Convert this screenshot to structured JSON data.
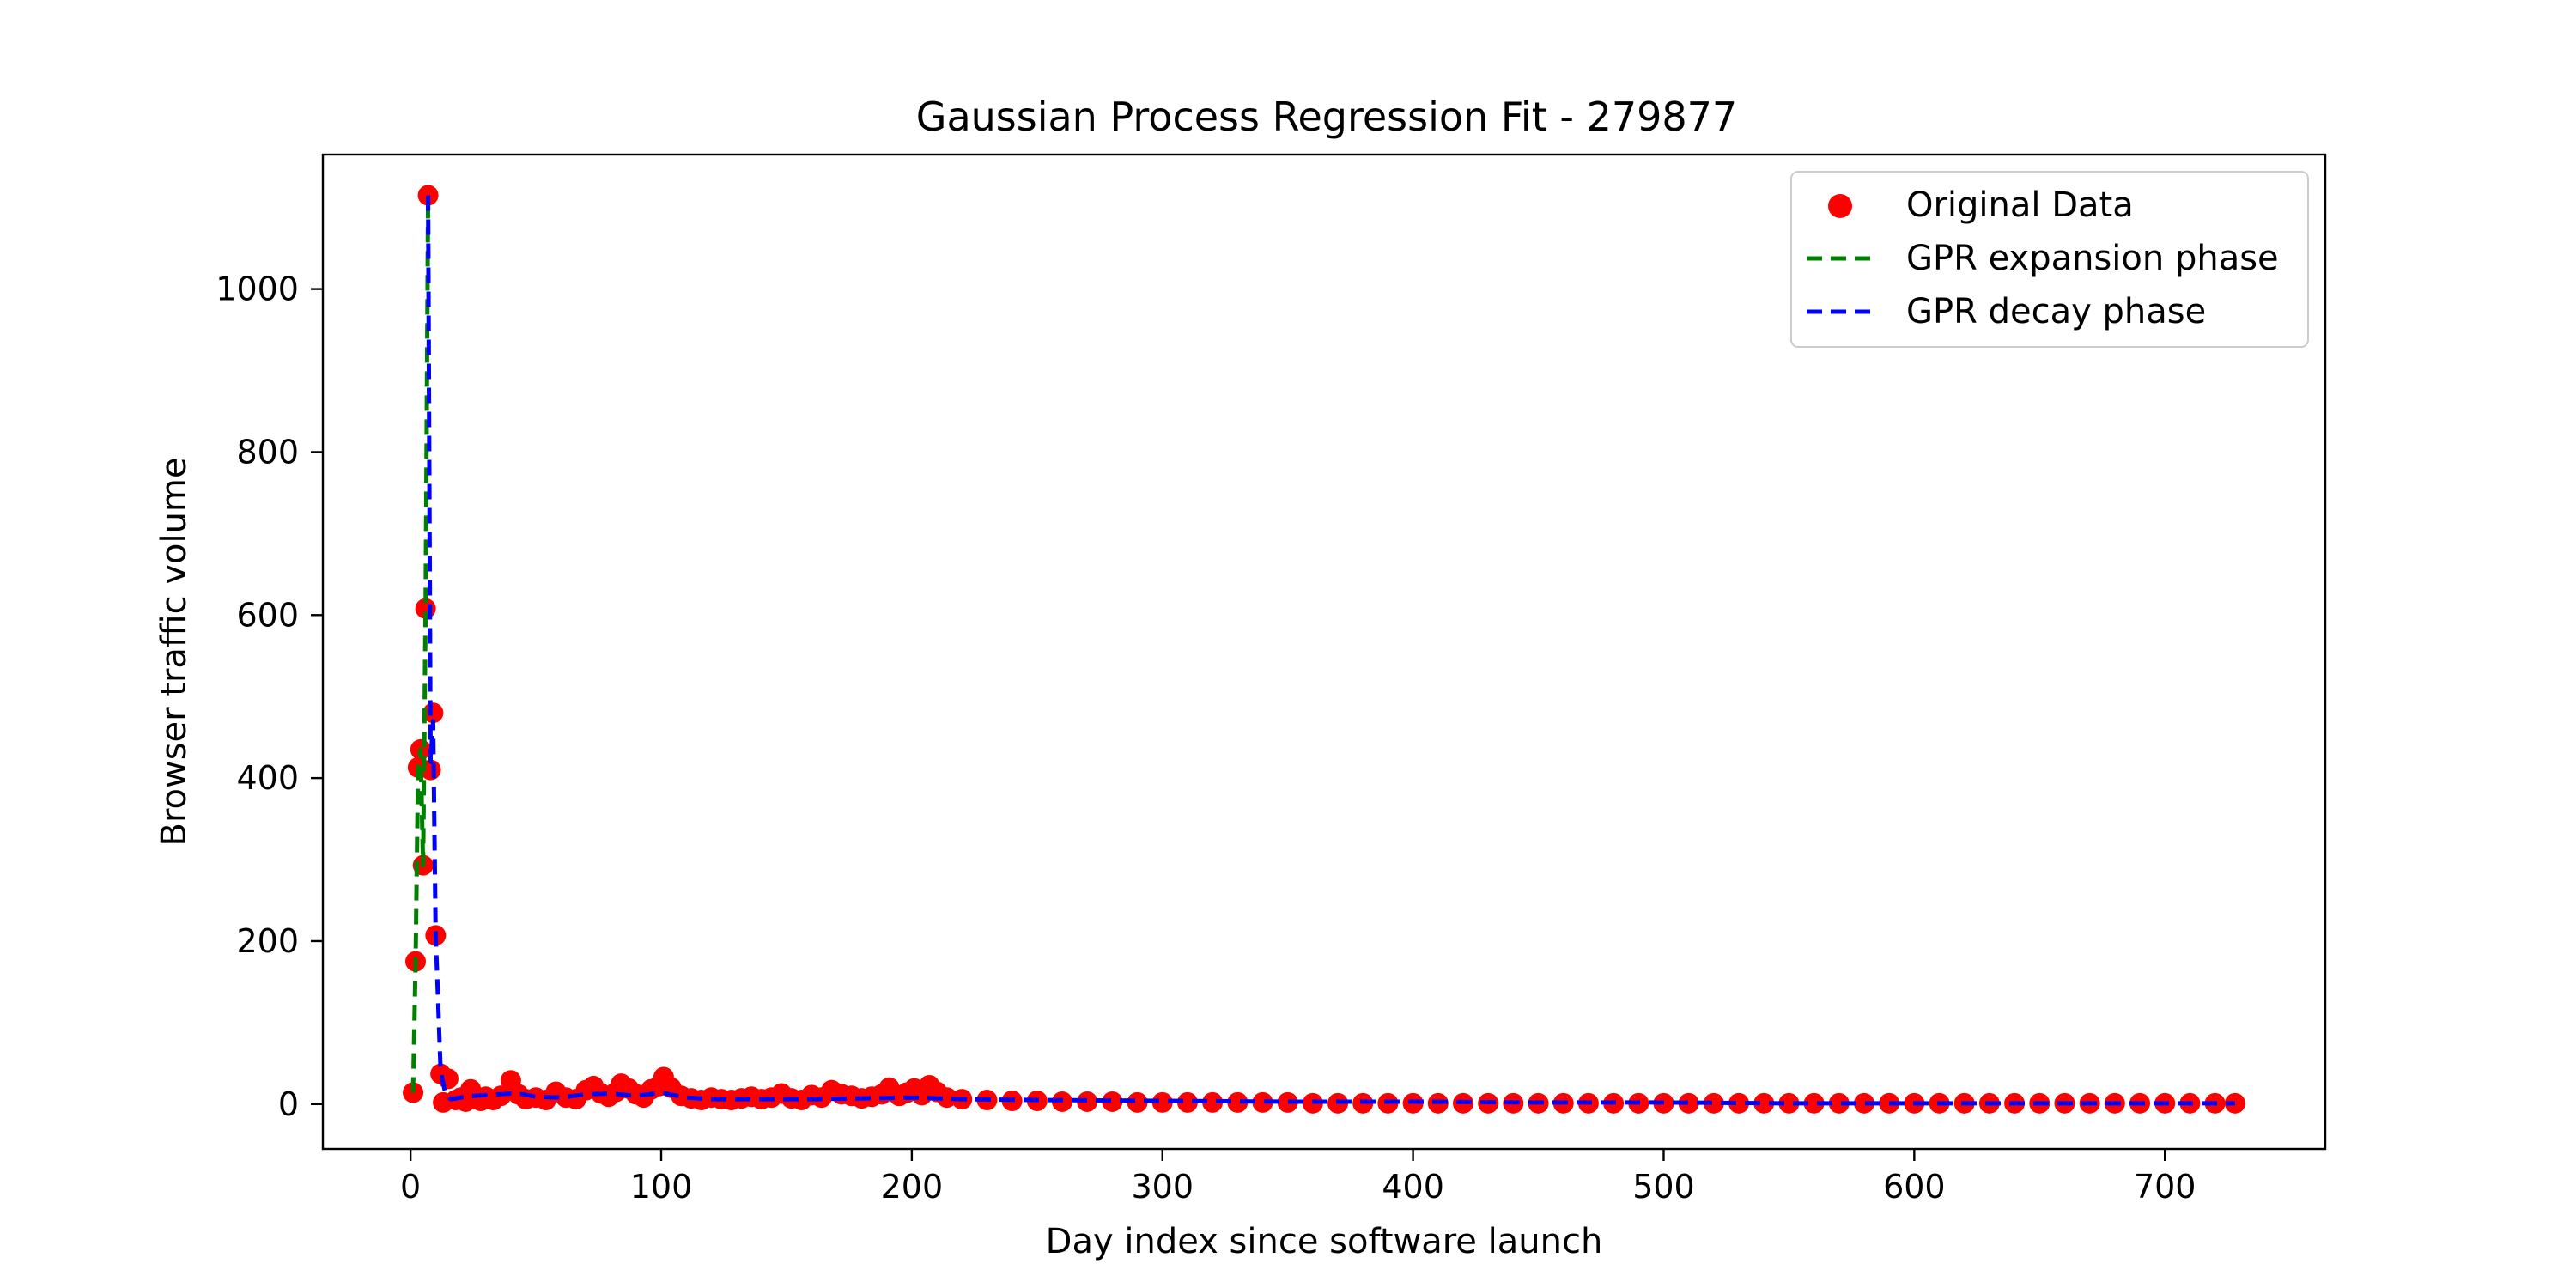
{
  "chart_data": {
    "type": "scatter",
    "title": "Gaussian Process Regression Fit - 279877",
    "xlabel": "Day index since software launch",
    "ylabel": "Browser traffic volume",
    "xlim": [
      -35,
      764
    ],
    "ylim": [
      -55,
      1165
    ],
    "xticks": [
      0,
      100,
      200,
      300,
      400,
      500,
      600,
      700
    ],
    "yticks": [
      0,
      200,
      400,
      600,
      800,
      1000
    ],
    "grid": false,
    "legend_position": "top-right",
    "colors": {
      "original_data": "#ff0000",
      "expansion_phase": "#008000",
      "decay_phase": "#0000ff"
    },
    "series": [
      {
        "name": "Original Data",
        "kind": "scatter",
        "color": "#ff0000",
        "points": [
          [
            1,
            14
          ],
          [
            2,
            175
          ],
          [
            3,
            413
          ],
          [
            4,
            435
          ],
          [
            5,
            293
          ],
          [
            6,
            608
          ],
          [
            7,
            1115
          ],
          [
            8,
            410
          ],
          [
            9,
            480
          ],
          [
            10,
            207
          ],
          [
            12,
            37
          ],
          [
            13,
            2
          ],
          [
            15,
            31
          ],
          [
            18,
            5
          ],
          [
            20,
            8
          ],
          [
            22,
            3
          ],
          [
            24,
            18
          ],
          [
            26,
            7
          ],
          [
            28,
            4
          ],
          [
            30,
            9
          ],
          [
            33,
            5
          ],
          [
            36,
            10
          ],
          [
            40,
            29
          ],
          [
            43,
            12
          ],
          [
            46,
            6
          ],
          [
            50,
            8
          ],
          [
            54,
            5
          ],
          [
            58,
            15
          ],
          [
            62,
            8
          ],
          [
            66,
            6
          ],
          [
            70,
            17
          ],
          [
            73,
            22
          ],
          [
            76,
            13
          ],
          [
            79,
            9
          ],
          [
            82,
            15
          ],
          [
            84,
            25
          ],
          [
            87,
            19
          ],
          [
            90,
            12
          ],
          [
            93,
            8
          ],
          [
            96,
            18
          ],
          [
            99,
            22
          ],
          [
            101,
            33
          ],
          [
            104,
            20
          ],
          [
            108,
            10
          ],
          [
            112,
            7
          ],
          [
            116,
            5
          ],
          [
            120,
            8
          ],
          [
            124,
            6
          ],
          [
            128,
            5
          ],
          [
            132,
            7
          ],
          [
            136,
            9
          ],
          [
            140,
            6
          ],
          [
            144,
            8
          ],
          [
            148,
            13
          ],
          [
            152,
            7
          ],
          [
            156,
            5
          ],
          [
            160,
            11
          ],
          [
            164,
            8
          ],
          [
            168,
            17
          ],
          [
            172,
            12
          ],
          [
            176,
            10
          ],
          [
            180,
            7
          ],
          [
            184,
            9
          ],
          [
            188,
            12
          ],
          [
            191,
            20
          ],
          [
            195,
            10
          ],
          [
            198,
            14
          ],
          [
            201,
            19
          ],
          [
            204,
            11
          ],
          [
            207,
            23
          ],
          [
            210,
            15
          ],
          [
            214,
            8
          ],
          [
            220,
            6
          ],
          [
            230,
            5
          ],
          [
            240,
            4
          ],
          [
            250,
            4
          ],
          [
            260,
            3
          ],
          [
            270,
            3
          ],
          [
            280,
            3
          ],
          [
            290,
            2
          ],
          [
            300,
            2
          ],
          [
            310,
            2
          ],
          [
            320,
            2
          ],
          [
            330,
            2
          ],
          [
            340,
            2
          ],
          [
            350,
            2
          ],
          [
            360,
            1
          ],
          [
            370,
            1
          ],
          [
            380,
            1
          ],
          [
            390,
            1
          ],
          [
            400,
            1
          ],
          [
            410,
            1
          ],
          [
            420,
            1
          ],
          [
            430,
            1
          ],
          [
            440,
            1
          ],
          [
            450,
            1
          ],
          [
            460,
            1
          ],
          [
            470,
            1
          ],
          [
            480,
            1
          ],
          [
            490,
            1
          ],
          [
            500,
            1
          ],
          [
            510,
            1
          ],
          [
            520,
            1
          ],
          [
            530,
            1
          ],
          [
            540,
            1
          ],
          [
            550,
            1
          ],
          [
            560,
            1
          ],
          [
            570,
            1
          ],
          [
            580,
            1
          ],
          [
            590,
            1
          ],
          [
            600,
            1
          ],
          [
            610,
            1
          ],
          [
            620,
            1
          ],
          [
            630,
            1
          ],
          [
            640,
            1
          ],
          [
            650,
            1
          ],
          [
            660,
            1
          ],
          [
            670,
            1
          ],
          [
            680,
            1
          ],
          [
            690,
            1
          ],
          [
            700,
            1
          ],
          [
            710,
            1
          ],
          [
            720,
            1
          ],
          [
            728,
            1
          ]
        ]
      },
      {
        "name": "GPR expansion phase",
        "kind": "line",
        "dash": "dashed",
        "color": "#008000",
        "points": [
          [
            1,
            14
          ],
          [
            2,
            175
          ],
          [
            3,
            413
          ],
          [
            4,
            435
          ],
          [
            5,
            293
          ],
          [
            6,
            608
          ],
          [
            7,
            1115
          ]
        ]
      },
      {
        "name": "GPR decay phase",
        "kind": "line",
        "dash": "dashed",
        "color": "#0000ff",
        "points": [
          [
            7,
            1115
          ],
          [
            8,
            420
          ],
          [
            9,
            470
          ],
          [
            10,
            210
          ],
          [
            12,
            40
          ],
          [
            14,
            12
          ],
          [
            16,
            6
          ],
          [
            20,
            8
          ],
          [
            25,
            10
          ],
          [
            30,
            11
          ],
          [
            35,
            12
          ],
          [
            40,
            13
          ],
          [
            45,
            12
          ],
          [
            50,
            9
          ],
          [
            60,
            8
          ],
          [
            70,
            12
          ],
          [
            80,
            13
          ],
          [
            90,
            10
          ],
          [
            100,
            14
          ],
          [
            110,
            8
          ],
          [
            120,
            6
          ],
          [
            140,
            6
          ],
          [
            160,
            6
          ],
          [
            180,
            7
          ],
          [
            200,
            8
          ],
          [
            220,
            6
          ],
          [
            250,
            5
          ],
          [
            300,
            4
          ],
          [
            350,
            3
          ],
          [
            400,
            3
          ],
          [
            450,
            2
          ],
          [
            500,
            2
          ],
          [
            550,
            1
          ],
          [
            600,
            1
          ],
          [
            650,
            1
          ],
          [
            700,
            1
          ],
          [
            728,
            1
          ]
        ]
      }
    ]
  }
}
